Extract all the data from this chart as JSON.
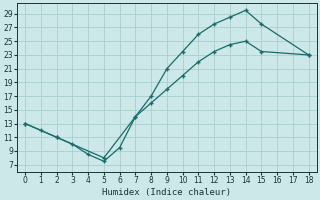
{
  "xlabel": "Humidex (Indice chaleur)",
  "bg_color": "#cce8e8",
  "line_color": "#1a6b6b",
  "grid_color": "#aacece",
  "xlim": [
    -0.5,
    18.5
  ],
  "ylim": [
    6,
    30.5
  ],
  "xticks": [
    0,
    1,
    2,
    3,
    4,
    5,
    6,
    7,
    8,
    9,
    10,
    11,
    12,
    13,
    14,
    15,
    16,
    17,
    18
  ],
  "yticks": [
    7,
    9,
    11,
    13,
    15,
    17,
    19,
    21,
    23,
    25,
    27,
    29
  ],
  "line1_x": [
    0,
    1,
    2,
    3,
    4,
    5,
    6,
    7,
    8,
    9,
    10,
    11,
    12,
    13,
    14,
    15,
    18
  ],
  "line1_y": [
    13,
    12,
    11,
    10,
    8.5,
    7.5,
    9.5,
    14,
    17,
    21,
    23.5,
    26,
    27.5,
    28.5,
    29.5,
    27.5,
    23
  ],
  "line2_x": [
    0,
    2,
    5,
    7,
    8,
    9,
    10,
    11,
    12,
    13,
    14,
    15,
    18
  ],
  "line2_y": [
    13,
    11,
    8,
    14,
    16,
    18,
    20,
    22,
    23.5,
    24.5,
    25,
    23.5,
    23
  ]
}
